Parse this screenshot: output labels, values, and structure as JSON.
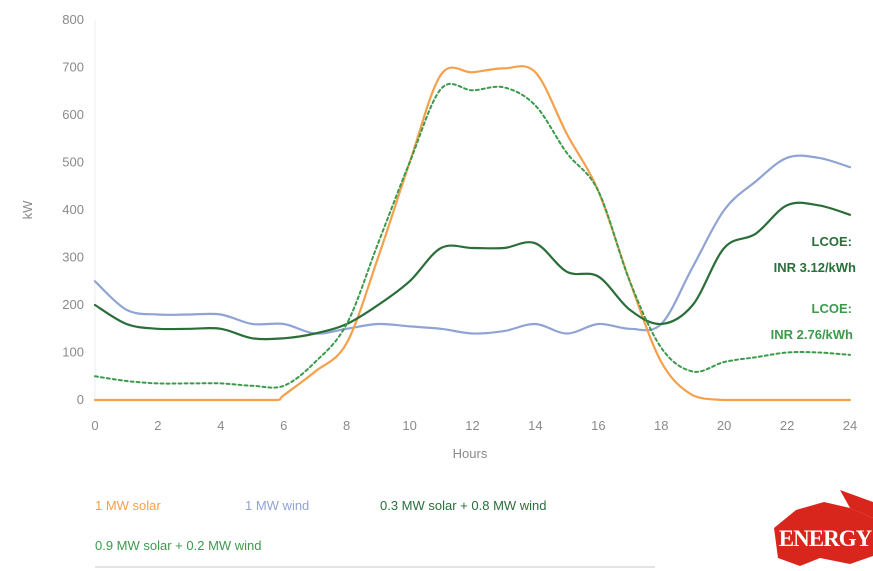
{
  "chart_data": {
    "type": "line",
    "xlabel": "Hours",
    "ylabel": "kW",
    "xlim": [
      0,
      24
    ],
    "ylim": [
      0,
      800
    ],
    "xticks": [
      0,
      2,
      4,
      6,
      8,
      10,
      12,
      14,
      16,
      18,
      20,
      22,
      24
    ],
    "yticks": [
      0,
      100,
      200,
      300,
      400,
      500,
      600,
      700,
      800
    ],
    "grid": false,
    "legend_position": "bottom-left",
    "series": [
      {
        "name": "1 MW solar",
        "color": "#f5a04a",
        "style": "solid",
        "x": [
          0,
          1,
          2,
          3,
          4,
          5,
          5.8,
          6,
          7,
          8,
          9,
          10,
          11,
          12,
          13,
          14,
          15,
          16,
          17,
          18,
          19,
          20,
          21,
          22,
          23,
          24
        ],
        "y": [
          0,
          0,
          0,
          0,
          0,
          0,
          0,
          10,
          60,
          120,
          300,
          500,
          685,
          690,
          698,
          690,
          560,
          440,
          250,
          80,
          10,
          0,
          0,
          0,
          0,
          0
        ]
      },
      {
        "name": "1 MW wind",
        "color": "#8fa3d4",
        "style": "solid",
        "x": [
          0,
          1,
          2,
          3,
          4,
          5,
          6,
          7,
          8,
          9,
          10,
          11,
          12,
          13,
          14,
          15,
          16,
          17,
          18,
          19,
          20,
          21,
          22,
          23,
          24
        ],
        "y": [
          250,
          190,
          180,
          180,
          180,
          160,
          160,
          140,
          150,
          160,
          155,
          150,
          140,
          145,
          160,
          140,
          160,
          150,
          160,
          280,
          400,
          460,
          510,
          510,
          490
        ]
      },
      {
        "name": "0.3 MW solar + 0.8 MW wind",
        "color": "#2a6e3a",
        "style": "solid",
        "x": [
          0,
          1,
          2,
          3,
          4,
          5,
          6,
          7,
          8,
          9,
          10,
          11,
          12,
          13,
          14,
          15,
          16,
          17,
          18,
          19,
          20,
          21,
          22,
          23,
          24
        ],
        "y": [
          200,
          160,
          150,
          150,
          150,
          130,
          130,
          140,
          160,
          200,
          250,
          320,
          320,
          320,
          330,
          270,
          260,
          190,
          160,
          200,
          320,
          350,
          410,
          410,
          390
        ]
      },
      {
        "name": "0.9 MW solar + 0.2 MW wind",
        "color": "#3c9a4c",
        "style": "dashed",
        "x": [
          0,
          1,
          2,
          3,
          4,
          5,
          6,
          7,
          8,
          9,
          10,
          11,
          12,
          13,
          14,
          15,
          16,
          17,
          18,
          19,
          20,
          21,
          22,
          23,
          24
        ],
        "y": [
          50,
          40,
          35,
          35,
          35,
          30,
          30,
          80,
          160,
          330,
          500,
          655,
          652,
          658,
          620,
          520,
          440,
          250,
          110,
          60,
          80,
          90,
          100,
          100,
          95
        ]
      }
    ],
    "annotations": [
      {
        "text_line1": "LCOE:",
        "text_line2": "INR 3.12/kWh",
        "color": "#2a6e3a"
      },
      {
        "text_line1": "LCOE:",
        "text_line2": "INR 2.76/kWh",
        "color": "#3c9a4c"
      }
    ]
  },
  "legend": [
    {
      "label": "1 MW solar",
      "color": "#f5a04a"
    },
    {
      "label": "1 MW wind",
      "color": "#8fa3d4"
    },
    {
      "label": "0.3 MW solar + 0.8 MW wind",
      "color": "#2a6e3a"
    },
    {
      "label": "0.9 MW solar + 0.2 MW wind",
      "color": "#3c9a4c"
    }
  ],
  "logo": {
    "text": "ENERGY",
    "color": "#d9261c"
  }
}
